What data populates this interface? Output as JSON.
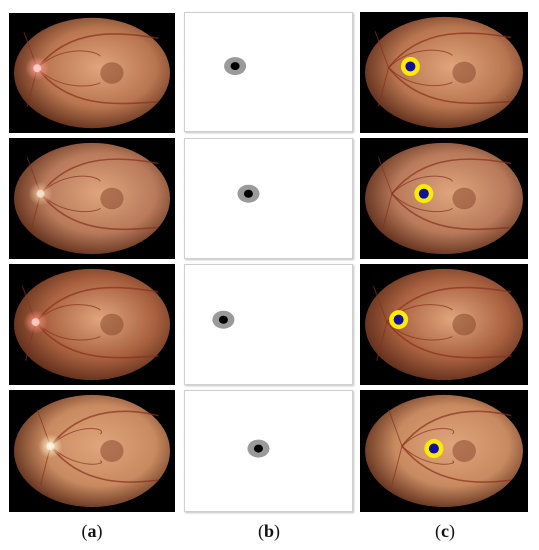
{
  "figure": {
    "column_labels": [
      {
        "open": "(",
        "letter": "a",
        "close": ")"
      },
      {
        "open": "(",
        "letter": "b",
        "close": ")"
      },
      {
        "open": "(",
        "letter": "c",
        "close": ")"
      }
    ],
    "rows": [
      {
        "retina_tone": "#b87550",
        "disc_tone": "#ff9a8c",
        "disc_side": "left",
        "disc_x_pct": 0.17,
        "disc_y_pct": 0.46,
        "mask_x_pct": 0.3,
        "mask_y_pct": 0.45
      },
      {
        "retina_tone": "#b87a5a",
        "disc_tone": "#f2c29a",
        "disc_side": "left",
        "disc_x_pct": 0.19,
        "disc_y_pct": 0.46,
        "mask_x_pct": 0.38,
        "mask_y_pct": 0.46
      },
      {
        "retina_tone": "#a8603f",
        "disc_tone": "#ff8f7a",
        "disc_side": "left",
        "disc_x_pct": 0.16,
        "disc_y_pct": 0.48,
        "mask_x_pct": 0.23,
        "mask_y_pct": 0.46
      },
      {
        "retina_tone": "#c88a60",
        "disc_tone": "#fff0c8",
        "disc_side": "left",
        "disc_x_pct": 0.25,
        "disc_y_pct": 0.46,
        "mask_x_pct": 0.44,
        "mask_y_pct": 0.48
      }
    ],
    "colors": {
      "background": "#ffffff",
      "fundus_border": "#000000",
      "mask_ring": "#9a9a9a",
      "mask_core": "#000000",
      "overlay_ring": "#ffeb00",
      "overlay_core": "#1010a0"
    }
  }
}
